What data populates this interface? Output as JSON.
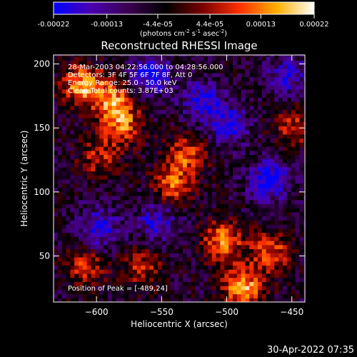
{
  "colorbar": {
    "tick_labels": [
      "-0.00022",
      "-0.00013",
      "-4.4e-05",
      "4.4e-05",
      "0.00013",
      "0.00022"
    ],
    "tick_values": [
      -0.00022,
      -0.00013,
      -4.4e-05,
      4.4e-05,
      0.00013,
      0.00022
    ],
    "range": [
      -0.00022,
      0.00022
    ],
    "units_prefix": "(photons cm",
    "units_exp1": "-2",
    "units_mid": " s",
    "units_exp2": "-1",
    "units_suffix": " asec",
    "units_exp3": "-2",
    "units_close": ")",
    "colors": [
      "#0000ff",
      "#4a00b0",
      "#3a0050",
      "#000000",
      "#7a0000",
      "#ff3000",
      "#ffb000",
      "#ffffff"
    ]
  },
  "chart_data": {
    "type": "heatmap",
    "title": "Reconstructed RHESSI Image",
    "xlabel": "Heliocentric X (arcsec)",
    "ylabel": "Heliocentric Y (arcsec)",
    "xlim": [
      -633,
      -440
    ],
    "ylim": [
      14,
      207
    ],
    "x_ticks": [
      -600,
      -550,
      -500,
      -450
    ],
    "y_ticks": [
      50,
      100,
      150,
      200
    ],
    "annotations": [
      "28-Mar-2003 04:22:56.000 to 04:28:56.000",
      "Detectors: 3F 4F 5F 6F 7F 8F, Att 0",
      "Energy Range: 25.0 - 50.0 keV",
      "Clean     Total counts: 3.87E+03"
    ],
    "peak_label": "Position of Peak = [-489,24]",
    "peak": {
      "x": -489,
      "y": 24
    },
    "bright_regions": [
      {
        "x": -612,
        "y": 182,
        "value": 0.00022
      },
      {
        "x": -588,
        "y": 170,
        "value": 0.00018
      },
      {
        "x": -582,
        "y": 150,
        "value": 0.00016
      },
      {
        "x": -600,
        "y": 125,
        "value": 0.00012
      },
      {
        "x": -543,
        "y": 104,
        "value": 0.00016
      },
      {
        "x": -532,
        "y": 128,
        "value": 0.00015
      },
      {
        "x": -505,
        "y": 60,
        "value": 0.00019
      },
      {
        "x": -489,
        "y": 24,
        "value": 0.00022
      },
      {
        "x": -468,
        "y": 52,
        "value": 0.00016
      },
      {
        "x": -450,
        "y": 150,
        "value": 0.00012
      },
      {
        "x": -610,
        "y": 40,
        "value": 0.00013
      },
      {
        "x": -566,
        "y": 40,
        "value": 0.00012
      }
    ],
    "dim_regions": [
      {
        "x": -560,
        "y": 190,
        "value": -0.00015
      },
      {
        "x": -520,
        "y": 170,
        "value": -0.00014
      },
      {
        "x": -500,
        "y": 150,
        "value": -0.00013
      },
      {
        "x": -470,
        "y": 108,
        "value": -0.00016
      },
      {
        "x": -555,
        "y": 75,
        "value": -0.00012
      },
      {
        "x": -600,
        "y": 70,
        "value": -0.00013
      },
      {
        "x": -455,
        "y": 190,
        "value": -0.00012
      }
    ]
  },
  "timestamp": "30-Apr-2022 07:35"
}
